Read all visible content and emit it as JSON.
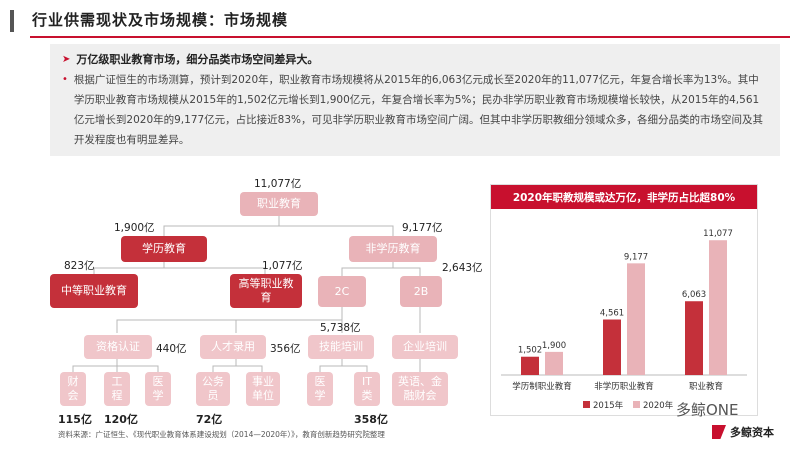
{
  "header": {
    "title": "行业供需现状及市场规模：市场规模"
  },
  "summary": {
    "headline": "万亿级职业教育市场，细分品类市场空间差异大。",
    "paragraph": "根据广证恒生的市场测算，预计到2020年，职业教育市场规模将从2015年的6,063亿元成长至2020年的11,077亿元，年复合增长率为13%。其中学历职业教育市场规模从2015年的1,502亿元增长到1,900亿元，年复合增长率为5%；民办非学历职业教育市场规模增长较快，从2015年的4,561亿元增长到2020年的9,177亿元，占比接近83%，可见非学历职业教育市场空间广阔。但其中非学历职教细分领域众多，各细分品类的市场空间及其开发程度也有明显差异。"
  },
  "tree": {
    "root": {
      "label": "职业教育",
      "value": "11,077亿"
    },
    "academic": {
      "label": "学历教育",
      "value": "1,900亿"
    },
    "non_academic": {
      "label": "非学历教育",
      "value": "9,177亿"
    },
    "secondary": {
      "label": "中等职业教育",
      "value": "823亿"
    },
    "higher": {
      "label": "高等职业教育",
      "value": "1,077亿"
    },
    "two_c": {
      "label": "2C",
      "value": "5,738亿"
    },
    "two_b": {
      "label": "2B",
      "value": "2,643亿"
    },
    "cert": {
      "label": "资格认证",
      "value": "440亿"
    },
    "talent": {
      "label": "人才录用",
      "value": "356亿"
    },
    "skill": {
      "label": "技能培训"
    },
    "corp": {
      "label": "企业培训"
    },
    "leaves": {
      "accounting": "财会",
      "engineering": "工程",
      "medicine1": "医学",
      "civil": "公务员",
      "public": "事业单位",
      "medicine2": "医学",
      "it": "IT类",
      "english": "英语、金融财会"
    },
    "leaf_values": {
      "accounting": "115亿",
      "engineering": "120亿",
      "civil": "72亿",
      "it": "358亿"
    },
    "source": "资料来源：广证恒生、《现代职业教育体系建设规划（2014—2020年）》，教育创新趋势研究院整理"
  },
  "chart_data": {
    "type": "bar",
    "title": "2020年职教规模或达万亿，非学历占比超80%",
    "categories": [
      "学历制职业教育",
      "非学历职业教育",
      "职业教育"
    ],
    "series": [
      {
        "name": "2015年",
        "values": [
          1502,
          4561,
          6063
        ],
        "color": "#c4303a"
      },
      {
        "name": "2020年",
        "values": [
          1900,
          9177,
          11077
        ],
        "color": "#e9b3b8"
      }
    ],
    "value_labels": [
      [
        "1,502",
        "4,561",
        "6,063"
      ],
      [
        "1,900",
        "9,177",
        "11,077"
      ]
    ],
    "ylim": [
      0,
      12000
    ],
    "legend": "bottom"
  },
  "watermark": {
    "text": "多鲸ONE"
  },
  "brand": {
    "text": "多鲸资本"
  }
}
